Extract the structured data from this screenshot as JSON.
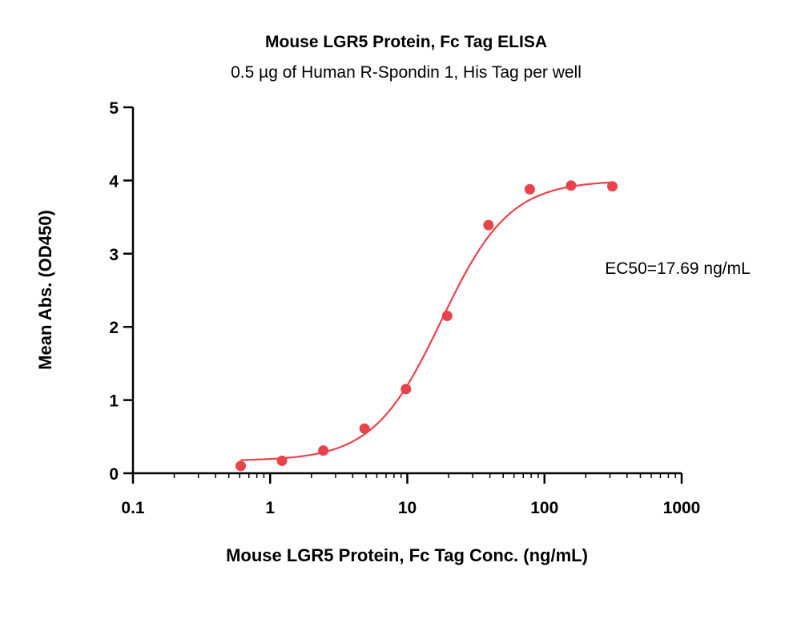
{
  "chart_data": {
    "type": "scatter",
    "title": "Mouse LGR5 Protein, Fc Tag ELISA",
    "subtitle": "0.5 µg of Human R-Spondin 1, His Tag per well",
    "xlabel": "Mouse LGR5 Protein, Fc Tag Conc. (ng/mL)",
    "ylabel": "Mean Abs. (OD450)",
    "x_scale": "log",
    "xlim": [
      0.1,
      1000
    ],
    "ylim": [
      0,
      5
    ],
    "x_ticks": [
      "0.1",
      "1",
      "10",
      "100",
      "1000"
    ],
    "y_ticks": [
      "0",
      "1",
      "2",
      "3",
      "4",
      "5"
    ],
    "grid": false,
    "annotation": "EC50=17.69 ng/mL",
    "colors": {
      "points": "#e8434a",
      "curve": "#e8434a",
      "axis": "#000000"
    },
    "points": {
      "x": [
        0.61,
        1.22,
        2.44,
        4.88,
        9.77,
        19.53,
        39.06,
        78.13,
        156.25,
        312.5
      ],
      "y": [
        0.1,
        0.17,
        0.31,
        0.61,
        1.15,
        2.15,
        3.39,
        3.88,
        3.93,
        3.92
      ]
    },
    "fit": {
      "model": "4PL",
      "bottom": 0.17,
      "top": 4.0,
      "ec50": 17.69,
      "hill": 1.75,
      "x_range": [
        0.61,
        312.5
      ]
    }
  }
}
